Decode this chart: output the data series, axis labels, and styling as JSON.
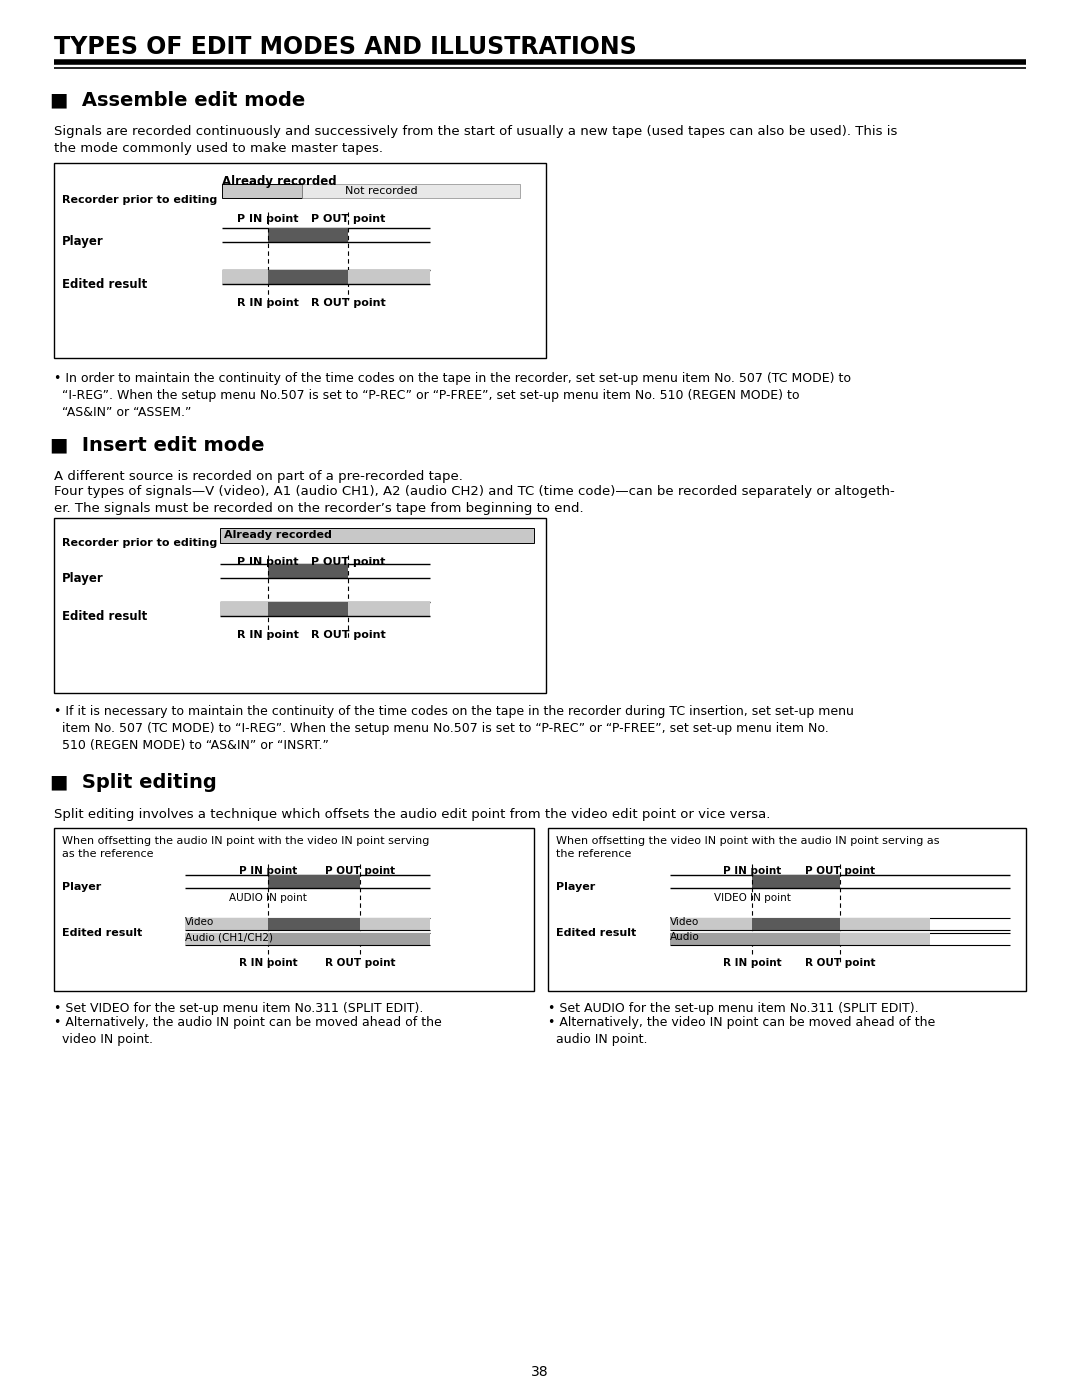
{
  "title": "TYPES OF EDIT MODES AND ILLUSTRATIONS",
  "bg_color": "#ffffff",
  "section1_header": "■  Assemble edit mode",
  "section1_para": "Signals are recorded continuously and successively from the start of usually a new tape (used tapes can also be used). This is\nthe mode commonly used to make master tapes.",
  "section1_note": "• In order to maintain the continuity of the time codes on the tape in the recorder, set set-up menu item No. 507 (TC MODE) to\n  “I-REG”. When the setup menu No.507 is set to “P-REC” or “P-FREE”, set set-up menu item No. 510 (REGEN MODE) to\n  “AS&IN” or “ASSEM.”",
  "section2_header": "■  Insert edit mode",
  "section2_para1": "A different source is recorded on part of a pre-recorded tape.",
  "section2_para2": "Four types of signals—V (video), A1 (audio CH1), A2 (audio CH2) and TC (time code)—can be recorded separately or altogeth-\ner. The signals must be recorded on the recorder’s tape from beginning to end.",
  "section2_note": "• If it is necessary to maintain the continuity of the time codes on the tape in the recorder during TC insertion, set set-up menu\n  item No. 507 (TC MODE) to “I-REG”. When the setup menu No.507 is set to “P-REC” or “P-FREE”, set set-up menu item No.\n  510 (REGEN MODE) to “AS&IN” or “INSRT.”",
  "section3_header": "■  Split editing",
  "section3_para": "Split editing involves a technique which offsets the audio edit point from the video edit point or vice versa.",
  "split_left_title": "When offsetting the audio IN point with the video IN point serving\nas the reference",
  "split_right_title": "When offsetting the video IN point with the audio IN point serving as\nthe reference",
  "split_left_note1": "• Set VIDEO for the set-up menu item No.311 (SPLIT EDIT).",
  "split_left_note2": "• Alternatively, the audio IN point can be moved ahead of the\n  video IN point.",
  "split_right_note1": "• Set AUDIO for the set-up menu item No.311 (SPLIT EDIT).",
  "split_right_note2": "• Alternatively, the video IN point can be moved ahead of the\n  audio IN point.",
  "page_number": "38",
  "light_gray": "#c8c8c8",
  "dark_gray": "#5a5a5a",
  "medium_gray": "#a0a0a0"
}
